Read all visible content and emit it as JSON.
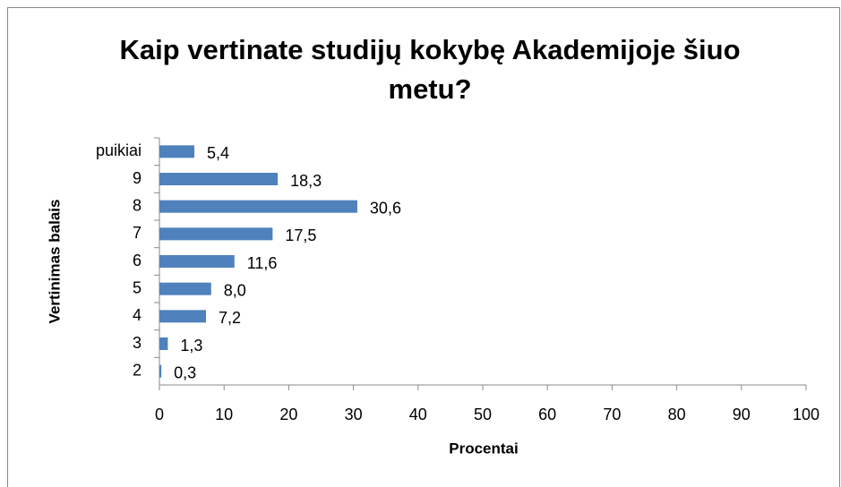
{
  "chart_data": {
    "type": "hbar",
    "title": "Kaip vertinate studijų kokybę Akademijoje šiuo metu?",
    "xlabel": "Procentai",
    "ylabel": "Vertinimas balais",
    "categories": [
      "puikiai",
      "9",
      "8",
      "7",
      "6",
      "5",
      "4",
      "3",
      "2"
    ],
    "values": [
      5.4,
      18.3,
      30.6,
      17.5,
      11.6,
      8.0,
      7.2,
      1.3,
      0.3
    ],
    "value_labels": [
      "5,4",
      "18,3",
      "30,6",
      "17,5",
      "11,6",
      "8,0",
      "7,2",
      "1,3",
      "0,3"
    ],
    "color": "#4f81bd",
    "xlim": [
      0,
      100
    ],
    "xticks": [
      0,
      10,
      20,
      30,
      40,
      50,
      60,
      70,
      80,
      90,
      100
    ]
  }
}
